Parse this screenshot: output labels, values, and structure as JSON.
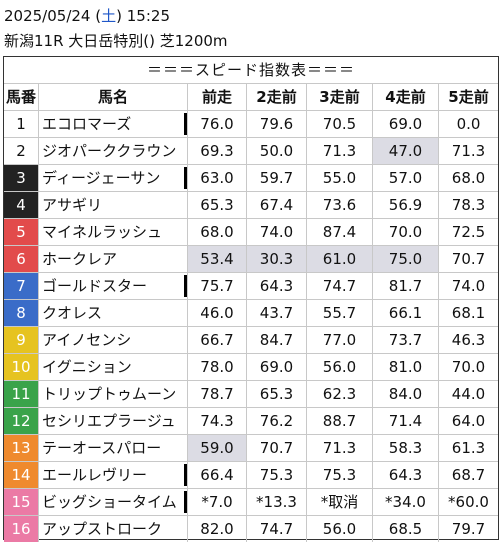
{
  "header": {
    "date": "2025/05/24",
    "weekday_open": "(",
    "weekday": "土",
    "weekday_close": ")",
    "time": "15:25",
    "race": "新潟11R 大日岳特別() 芝1200m"
  },
  "table_title": "＝＝＝スピード指数表＝＝＝",
  "columns": [
    "馬番",
    "馬名",
    "前走",
    "2走前",
    "3走前",
    "4走前",
    "5走前"
  ],
  "colors": {
    "white": "#ffffff",
    "black": "#222222",
    "red": "#e24b4b",
    "blue": "#3a6cc8",
    "yellow": "#e6c320",
    "green": "#3aa34a",
    "orange": "#ef8a2e",
    "pink": "#eb7aa5",
    "highlight": "#dcdce4"
  },
  "horses": [
    {
      "no": "1",
      "name": "エコロマーズ",
      "bg": "#ffffff",
      "fg": "#111111",
      "values": [
        "76.0",
        "79.6",
        "70.5",
        "69.0",
        "0.0"
      ],
      "hl": [],
      "mark": true
    },
    {
      "no": "2",
      "name": "ジオパーククラウン",
      "bg": "#ffffff",
      "fg": "#111111",
      "values": [
        "69.3",
        "50.0",
        "71.3",
        "47.0",
        "71.3"
      ],
      "hl": [
        3
      ],
      "mark": false
    },
    {
      "no": "3",
      "name": "ディージェーサン",
      "bg": "#222222",
      "fg": "#ffffff",
      "values": [
        "63.0",
        "59.7",
        "55.0",
        "57.0",
        "68.0"
      ],
      "hl": [],
      "mark": true
    },
    {
      "no": "4",
      "name": "アサギリ",
      "bg": "#222222",
      "fg": "#ffffff",
      "values": [
        "65.3",
        "67.4",
        "73.6",
        "56.9",
        "78.3"
      ],
      "hl": [],
      "mark": false
    },
    {
      "no": "5",
      "name": "マイネルラッシュ",
      "bg": "#e24b4b",
      "fg": "#ffffff",
      "values": [
        "68.0",
        "74.0",
        "87.4",
        "70.0",
        "72.5"
      ],
      "hl": [],
      "mark": false
    },
    {
      "no": "6",
      "name": "ホークレア",
      "bg": "#e24b4b",
      "fg": "#ffffff",
      "values": [
        "53.4",
        "30.3",
        "61.0",
        "75.0",
        "70.7"
      ],
      "hl": [
        0,
        1,
        2,
        3
      ],
      "mark": false
    },
    {
      "no": "7",
      "name": "ゴールドスター",
      "bg": "#3a6cc8",
      "fg": "#ffffff",
      "values": [
        "75.7",
        "64.3",
        "74.7",
        "81.7",
        "74.0"
      ],
      "hl": [],
      "mark": true
    },
    {
      "no": "8",
      "name": "クオレス",
      "bg": "#3a6cc8",
      "fg": "#ffffff",
      "values": [
        "46.0",
        "43.7",
        "55.7",
        "66.1",
        "68.1"
      ],
      "hl": [],
      "mark": false
    },
    {
      "no": "9",
      "name": "アイノセンシ",
      "bg": "#e6c320",
      "fg": "#ffffff",
      "values": [
        "66.7",
        "84.7",
        "77.0",
        "73.7",
        "46.3"
      ],
      "hl": [],
      "mark": false
    },
    {
      "no": "10",
      "name": "イグニション",
      "bg": "#e6c320",
      "fg": "#ffffff",
      "values": [
        "78.0",
        "69.0",
        "56.0",
        "81.0",
        "70.0"
      ],
      "hl": [],
      "mark": false
    },
    {
      "no": "11",
      "name": "トリップトゥムーン",
      "bg": "#3aa34a",
      "fg": "#ffffff",
      "values": [
        "78.7",
        "65.3",
        "62.3",
        "84.0",
        "44.0"
      ],
      "hl": [],
      "mark": false
    },
    {
      "no": "12",
      "name": "セシリエプラージュ",
      "bg": "#3aa34a",
      "fg": "#ffffff",
      "values": [
        "74.3",
        "76.2",
        "88.7",
        "71.4",
        "64.0"
      ],
      "hl": [],
      "mark": false
    },
    {
      "no": "13",
      "name": "テーオースパロー",
      "bg": "#ef8a2e",
      "fg": "#ffffff",
      "values": [
        "59.0",
        "70.7",
        "71.3",
        "58.3",
        "61.3"
      ],
      "hl": [
        0
      ],
      "mark": false
    },
    {
      "no": "14",
      "name": "エールレヴリー",
      "bg": "#ef8a2e",
      "fg": "#ffffff",
      "values": [
        "66.4",
        "75.3",
        "75.3",
        "64.3",
        "68.7"
      ],
      "hl": [],
      "mark": true
    },
    {
      "no": "15",
      "name": "ビッグショータイム",
      "bg": "#eb7aa5",
      "fg": "#ffffff",
      "values": [
        "*7.0",
        "*13.3",
        "*取消",
        "*34.0",
        "*60.0"
      ],
      "hl": [],
      "mark": true
    },
    {
      "no": "16",
      "name": "アップストローク",
      "bg": "#eb7aa5",
      "fg": "#ffffff",
      "values": [
        "82.0",
        "74.7",
        "56.0",
        "68.5",
        "79.7"
      ],
      "hl": [],
      "mark": false
    }
  ]
}
